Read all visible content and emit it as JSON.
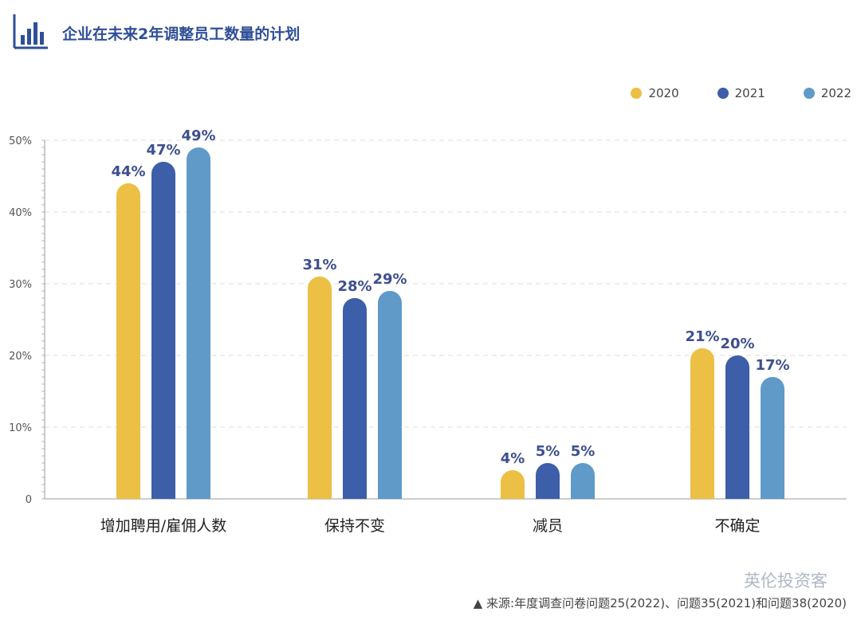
{
  "title": "企业在未来2年调整员工数量的计划",
  "source": "▲ 来源:年度调查问卷问题25(2022)、问题35(2021)和问题38(2020)",
  "watermark": "英伦投资客",
  "colors": {
    "2020": "#ecbf45",
    "2021": "#3d5ea8",
    "2022": "#5f9ac8",
    "title": "#2f4f96",
    "label": "#3d4f8f"
  },
  "chart_data": {
    "type": "bar",
    "categories": [
      "增加聘用/雇佣人数",
      "保持不变",
      "减员",
      "不确定"
    ],
    "series": [
      {
        "name": "2020",
        "values": [
          44,
          31,
          4,
          21
        ]
      },
      {
        "name": "2021",
        "values": [
          47,
          28,
          5,
          20
        ]
      },
      {
        "name": "2022",
        "values": [
          49,
          29,
          5,
          17
        ]
      }
    ],
    "data_labels": [
      [
        "44%",
        "31%",
        "4%",
        "21%"
      ],
      [
        "47%",
        "28%",
        "5%",
        "20%"
      ],
      [
        "49%",
        "29%",
        "5%",
        "17%"
      ]
    ],
    "y_ticks": [
      0,
      10,
      20,
      30,
      40,
      50
    ],
    "y_tick_labels": [
      "0",
      "10%",
      "20%",
      "30%",
      "40%",
      "50%"
    ],
    "ylim": [
      0,
      50
    ],
    "grid": true,
    "legend": "top-right"
  }
}
